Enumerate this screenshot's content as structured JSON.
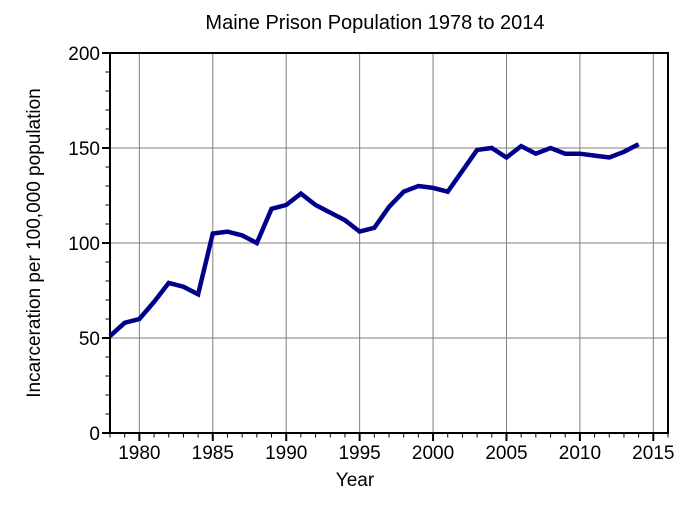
{
  "chart_data": {
    "type": "line",
    "title": "Maine Prison Population 1978 to 2014",
    "xlabel": "Year",
    "ylabel": "Incarceration per 100,000 population",
    "x": [
      1978,
      1979,
      1980,
      1981,
      1982,
      1983,
      1984,
      1985,
      1986,
      1987,
      1988,
      1989,
      1990,
      1991,
      1992,
      1993,
      1994,
      1995,
      1996,
      1997,
      1998,
      1999,
      2000,
      2001,
      2002,
      2003,
      2004,
      2005,
      2006,
      2007,
      2008,
      2009,
      2010,
      2011,
      2012,
      2013,
      2014
    ],
    "values": [
      51,
      58,
      60,
      69,
      79,
      77,
      73,
      105,
      106,
      104,
      100,
      118,
      120,
      126,
      120,
      116,
      112,
      106,
      108,
      119,
      127,
      130,
      129,
      127,
      138,
      149,
      150,
      145,
      151,
      147,
      150,
      147,
      147,
      146,
      145,
      148,
      152
    ],
    "xlim": [
      1978,
      2016
    ],
    "ylim": [
      0,
      200
    ],
    "x_ticks": [
      1980,
      1985,
      1990,
      1995,
      2000,
      2005,
      2010,
      2015
    ],
    "x_minor_step": 1,
    "y_ticks": [
      0,
      50,
      100,
      150,
      200
    ],
    "y_minor_step": 10,
    "grid": true,
    "legend": "none",
    "line_color": "#00008b",
    "line_width": 4.5,
    "grid_color": "#7f7f7f",
    "frame_color": "#000000",
    "background": "#ffffff"
  }
}
